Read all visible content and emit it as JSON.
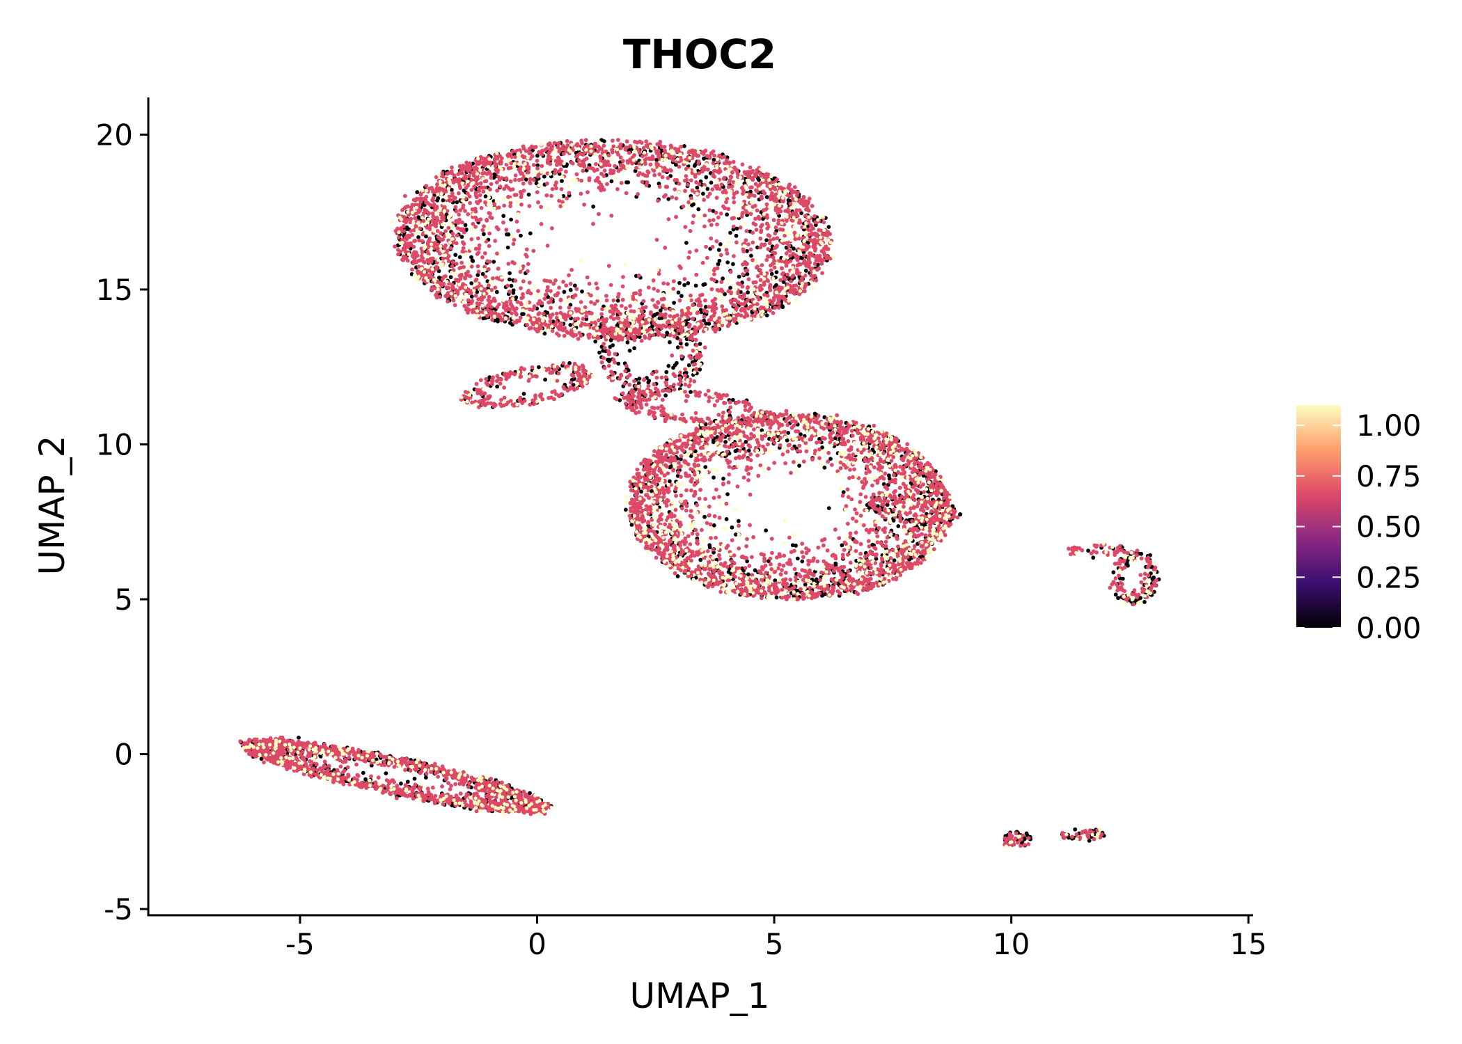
{
  "chart_data": {
    "type": "scatter",
    "title": "THOC2",
    "xlabel": "UMAP_1",
    "ylabel": "UMAP_2",
    "xlim": [
      -8.2,
      15.1
    ],
    "ylim": [
      -5.2,
      21.2
    ],
    "x_ticks": [
      -5,
      0,
      5,
      10,
      15
    ],
    "x_tick_labels": [
      "-5",
      "0",
      "5",
      "10",
      "15"
    ],
    "y_ticks": [
      -5,
      0,
      5,
      10,
      15,
      20
    ],
    "y_tick_labels": [
      "-5",
      "0",
      "5",
      "10",
      "15",
      "20"
    ],
    "grid": false,
    "color_scale": {
      "name": "magma",
      "min": 0.0,
      "max": 1.1,
      "ticks": [
        0.0,
        0.25,
        0.5,
        0.75,
        1.0
      ],
      "tick_labels": [
        "0.00",
        "0.25",
        "0.50",
        "0.75",
        "1.00"
      ],
      "stops": [
        "#000004",
        "#3b0f70",
        "#8c2981",
        "#de4968",
        "#fe9f6d",
        "#fcfdbf"
      ],
      "legend_position": "right"
    },
    "clusters": [
      {
        "name": "upper-cluster",
        "center": [
          1.6,
          16.6
        ],
        "spread": [
          4.6,
          3.2
        ],
        "angle": -4,
        "n": 3600,
        "mix": [
          0.2,
          0.68,
          0.12
        ]
      },
      {
        "name": "upper-cluster-neck",
        "center": [
          2.4,
          12.9
        ],
        "spread": [
          1.1,
          1.3
        ],
        "angle": 0,
        "n": 260,
        "mix": [
          0.4,
          0.55,
          0.05
        ]
      },
      {
        "name": "upper-cluster-branch",
        "center": [
          -0.2,
          11.9
        ],
        "spread": [
          1.4,
          0.55
        ],
        "angle": 18,
        "n": 260,
        "mix": [
          0.15,
          0.75,
          0.1
        ]
      },
      {
        "name": "middle-cluster",
        "center": [
          5.3,
          8.0
        ],
        "spread": [
          3.4,
          3.0
        ],
        "angle": -8,
        "n": 3200,
        "mix": [
          0.18,
          0.66,
          0.16
        ]
      },
      {
        "name": "middle-cluster-bridge",
        "center": [
          3.3,
          11.2
        ],
        "spread": [
          1.6,
          0.5
        ],
        "angle": -10,
        "n": 220,
        "mix": [
          0.25,
          0.7,
          0.05
        ]
      },
      {
        "name": "middle-cluster-arm",
        "center": [
          7.9,
          7.9
        ],
        "spread": [
          1.0,
          0.4
        ],
        "angle": -12,
        "n": 140,
        "mix": [
          0.45,
          0.5,
          0.05
        ]
      },
      {
        "name": "lower-left-streak",
        "center": [
          -3.0,
          -0.7
        ],
        "spread": [
          3.4,
          0.55
        ],
        "angle": -18,
        "n": 1800,
        "mix": [
          0.25,
          0.65,
          0.1
        ]
      },
      {
        "name": "right-small-cluster",
        "center": [
          12.6,
          5.7
        ],
        "spread": [
          0.45,
          0.85
        ],
        "angle": 0,
        "n": 160,
        "mix": [
          0.3,
          0.55,
          0.15
        ]
      },
      {
        "name": "right-small-cluster-top",
        "center": [
          11.8,
          6.6
        ],
        "spread": [
          0.6,
          0.15
        ],
        "angle": 0,
        "n": 50,
        "mix": [
          0.3,
          0.6,
          0.1
        ]
      },
      {
        "name": "bottom-blob-a",
        "center": [
          10.1,
          -2.75
        ],
        "spread": [
          0.25,
          0.2
        ],
        "angle": 0,
        "n": 70,
        "mix": [
          0.55,
          0.4,
          0.05
        ]
      },
      {
        "name": "bottom-blob-b",
        "center": [
          11.5,
          -2.6
        ],
        "spread": [
          0.45,
          0.1
        ],
        "angle": 5,
        "n": 55,
        "mix": [
          0.35,
          0.5,
          0.15
        ]
      }
    ]
  }
}
